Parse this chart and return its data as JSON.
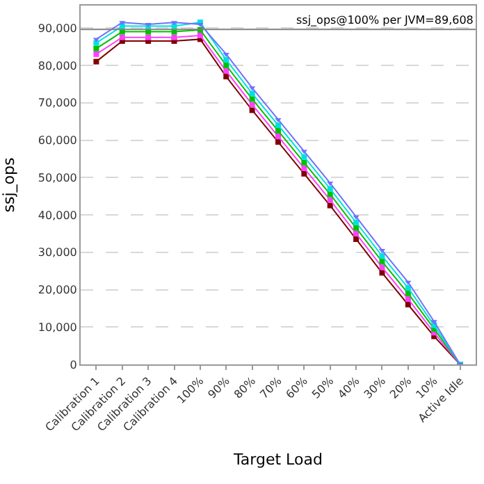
{
  "chart_data": {
    "type": "line",
    "xlabel": "Target Load",
    "ylabel": "ssj_ops",
    "categories": [
      "Calibration 1",
      "Calibration 2",
      "Calibration 3",
      "Calibration 4",
      "100%",
      "90%",
      "80%",
      "70%",
      "60%",
      "50%",
      "40%",
      "30%",
      "20%",
      "10%",
      "Active Idle"
    ],
    "series": [
      {
        "color": "#800000",
        "marker": "square",
        "values": [
          81000,
          86500,
          86500,
          86500,
          87000,
          77000,
          68000,
          59500,
          51000,
          42500,
          33500,
          24500,
          16000,
          7500,
          0
        ]
      },
      {
        "color": "#ff40ff",
        "marker": "square",
        "values": [
          83000,
          87500,
          87500,
          87500,
          88000,
          78500,
          69500,
          61000,
          52500,
          44000,
          35000,
          26000,
          17500,
          8500,
          0
        ]
      },
      {
        "color": "#00c000",
        "marker": "square",
        "values": [
          84500,
          89000,
          89000,
          89000,
          89500,
          80000,
          71000,
          62500,
          54000,
          45500,
          36500,
          27500,
          19000,
          9500,
          0
        ]
      },
      {
        "color": "#00e0e0",
        "marker": "square",
        "values": [
          86000,
          90500,
          90500,
          90500,
          91500,
          81500,
          72500,
          64000,
          55500,
          47000,
          38000,
          29000,
          20500,
          10500,
          0
        ]
      },
      {
        "color": "#7070ff",
        "marker": "triangle",
        "values": [
          87000,
          91500,
          91000,
          91500,
          91000,
          83000,
          74000,
          65500,
          57000,
          48500,
          39500,
          30500,
          22000,
          11500,
          0
        ]
      }
    ],
    "ylim": [
      0,
      96000
    ],
    "yticks": [
      {
        "value": 0,
        "label": "0"
      },
      {
        "value": 10000,
        "label": "10,000"
      },
      {
        "value": 20000,
        "label": "20,000"
      },
      {
        "value": 30000,
        "label": "30,000"
      },
      {
        "value": 40000,
        "label": "40,000"
      },
      {
        "value": 50000,
        "label": "50,000"
      },
      {
        "value": 60000,
        "label": "60,000"
      },
      {
        "value": 70000,
        "label": "70,000"
      },
      {
        "value": 80000,
        "label": "80,000"
      },
      {
        "value": 90000,
        "label": "90,000"
      }
    ],
    "ref_lines": [
      {
        "axis": "y",
        "value": 89608,
        "label": "ssj_ops@100% per JVM=89,608",
        "color": "#808080"
      }
    ],
    "grid": "y"
  }
}
